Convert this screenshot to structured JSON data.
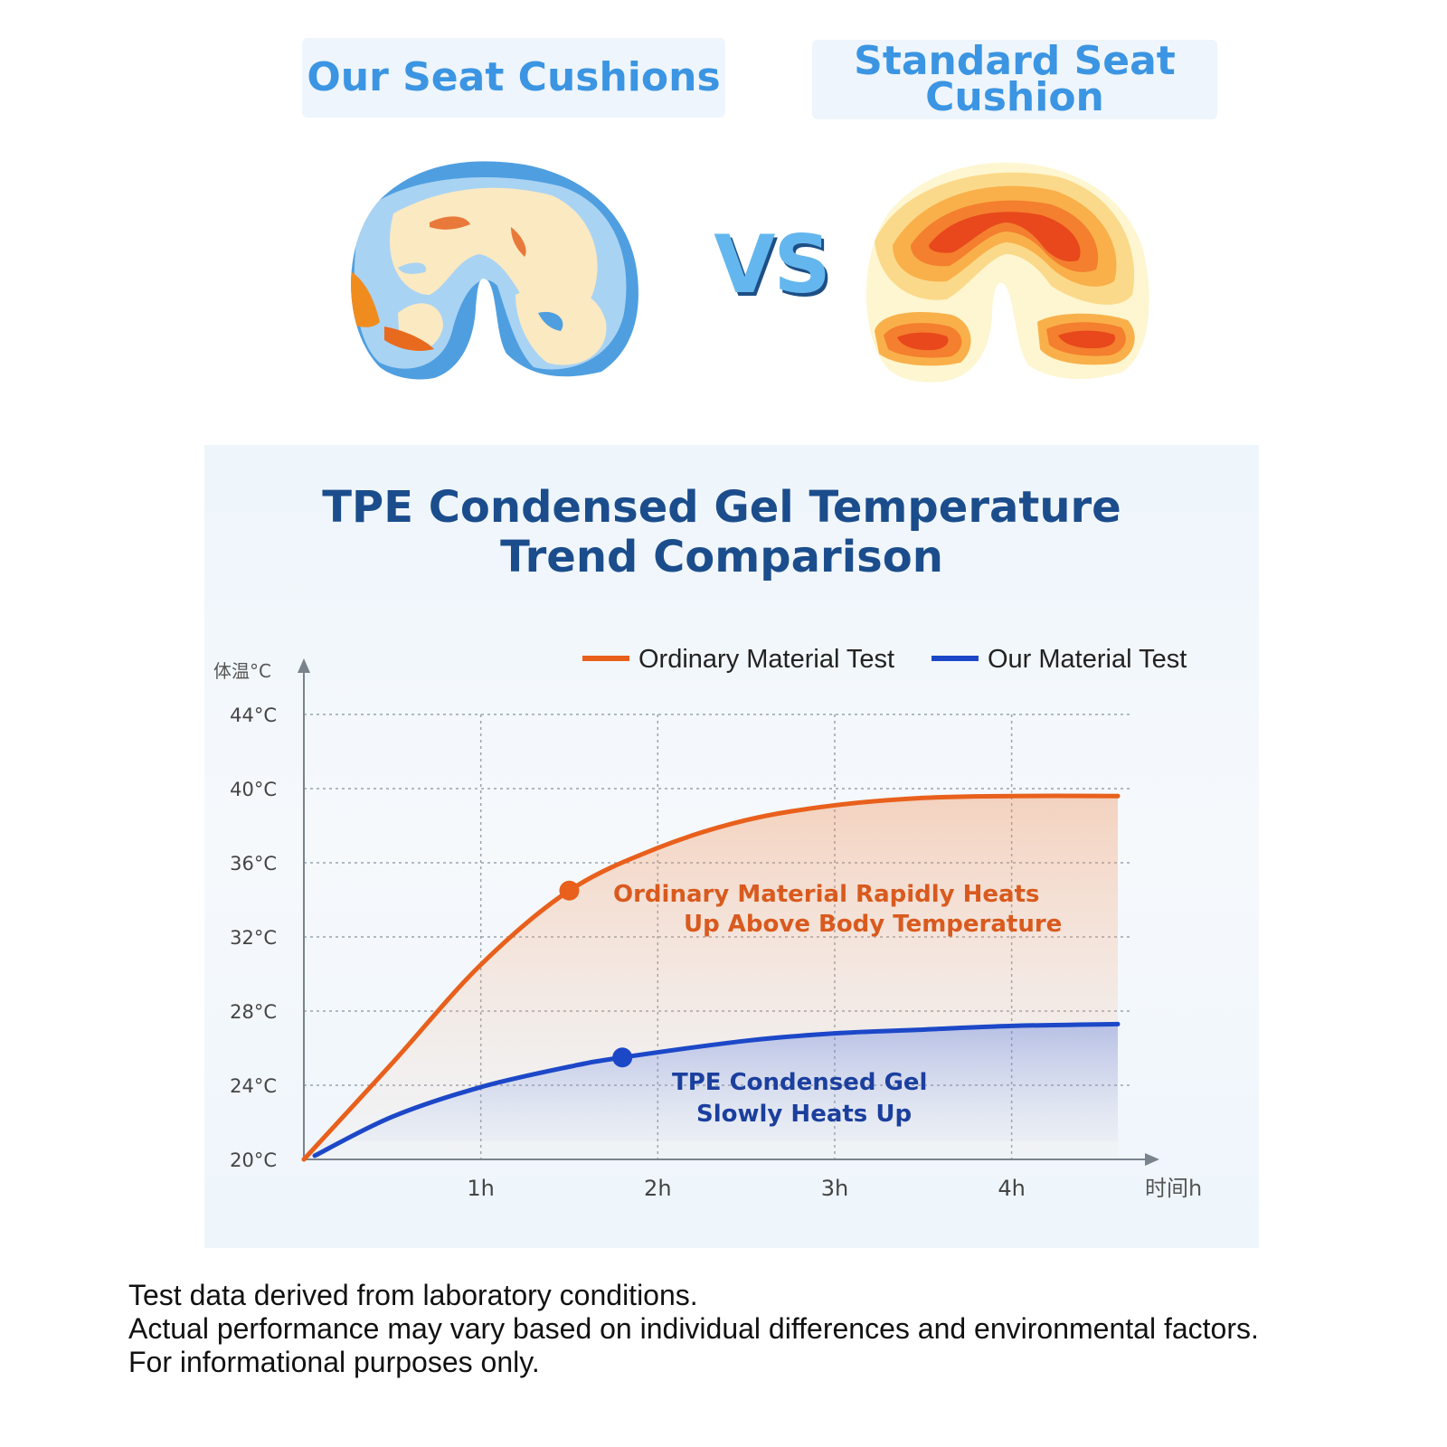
{
  "header": {
    "left_label": "Our Seat Cushions",
    "right_label_line1": "Standard Seat",
    "right_label_line2": "Cushion",
    "vs_text": "VS"
  },
  "heatmaps": {
    "left_icon": "cool-pressure-heatmap-icon",
    "right_icon": "hot-pressure-heatmap-icon"
  },
  "chart_data": {
    "type": "line",
    "title_line1": "TPE Condensed Gel Temperature",
    "title_line2": "Trend Comparison",
    "ylabel": "体温°C",
    "xlabel": "时间h",
    "ylim": [
      20,
      44
    ],
    "xlim": [
      0,
      4.6
    ],
    "y_ticks": [
      "20°C",
      "24°C",
      "28°C",
      "32°C",
      "36°C",
      "40°C",
      "44°C"
    ],
    "x_ticks": [
      "1h",
      "2h",
      "3h",
      "4h"
    ],
    "grid": true,
    "legend_position": "top-right",
    "series": [
      {
        "name": "Ordinary Material Test",
        "color": "#e8601c",
        "x": [
          0,
          0.5,
          1.0,
          1.5,
          2.0,
          2.5,
          3.0,
          3.5,
          4.0,
          4.6
        ],
        "y": [
          20.0,
          25.2,
          30.5,
          34.5,
          36.8,
          38.3,
          39.1,
          39.5,
          39.6,
          39.6
        ],
        "marker": {
          "x": 1.5,
          "y": 34.5
        },
        "annotation_line1": "Ordinary Material Rapidly Heats",
        "annotation_line2": "Up Above Body Temperature"
      },
      {
        "name": "Our Material Test",
        "color": "#1c48c8",
        "x": [
          0,
          0.5,
          1.0,
          1.5,
          1.8,
          2.5,
          3.0,
          3.5,
          4.0,
          4.6
        ],
        "y": [
          20.2,
          22.3,
          23.9,
          25.0,
          25.5,
          26.4,
          26.8,
          27.0,
          27.2,
          27.3
        ],
        "marker": {
          "x": 1.8,
          "y": 25.5
        },
        "annotation_line1": "TPE Condensed Gel",
        "annotation_line2": "Slowly Heats Up"
      }
    ]
  },
  "footnote": {
    "line1": "Test data derived from laboratory conditions.",
    "line2": "Actual performance may vary based on individual differences and environmental factors.",
    "line3": "For informational purposes only."
  }
}
